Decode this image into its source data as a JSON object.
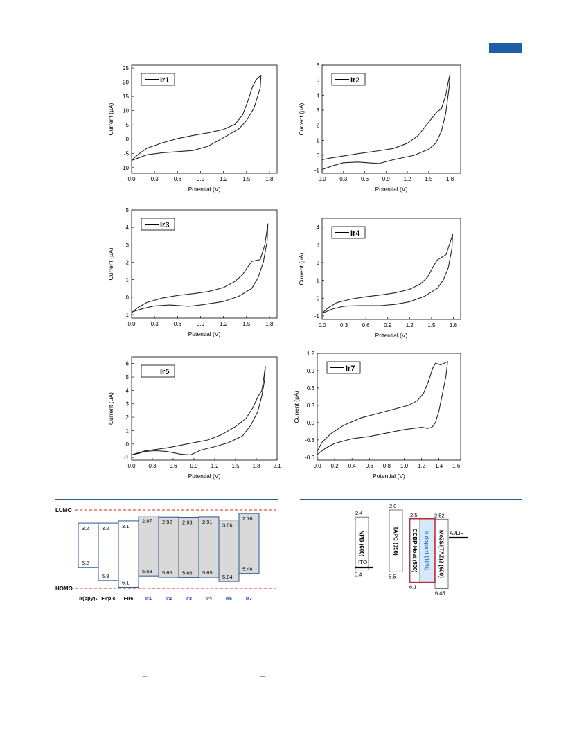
{
  "page": {
    "accent_color": "#1f5fa8",
    "rule_color": "#2b5b91",
    "bottom_marks": [
      "–",
      "–"
    ]
  },
  "chart_data": [
    {
      "id": "ir1",
      "type": "line",
      "legend": "Ir1",
      "xlabel": "Potential (V)",
      "ylabel": "Current (μA)",
      "xlim": [
        0.0,
        1.9
      ],
      "ylim": [
        -12,
        26
      ],
      "xticks": [
        0.0,
        0.3,
        0.6,
        0.9,
        1.2,
        1.5,
        1.8
      ],
      "yticks": [
        -10,
        -5,
        0,
        5,
        10,
        15,
        20,
        25
      ],
      "points": [
        [
          0.0,
          -7.5
        ],
        [
          0.08,
          -5.5
        ],
        [
          0.2,
          -3.2
        ],
        [
          0.4,
          -1.3
        ],
        [
          0.6,
          0.2
        ],
        [
          0.8,
          1.3
        ],
        [
          1.0,
          2.2
        ],
        [
          1.2,
          3.4
        ],
        [
          1.35,
          5.2
        ],
        [
          1.45,
          8.5
        ],
        [
          1.52,
          13.5
        ],
        [
          1.58,
          18.5
        ],
        [
          1.63,
          21.0
        ],
        [
          1.69,
          22.5
        ],
        [
          1.68,
          18.0
        ],
        [
          1.6,
          11.0
        ],
        [
          1.5,
          6.5
        ],
        [
          1.4,
          3.6
        ],
        [
          1.2,
          0.5
        ],
        [
          1.0,
          -2.5
        ],
        [
          0.8,
          -4.0
        ],
        [
          0.6,
          -4.4
        ],
        [
          0.4,
          -4.8
        ],
        [
          0.2,
          -5.5
        ],
        [
          0.08,
          -6.7
        ],
        [
          0.0,
          -7.5
        ]
      ]
    },
    {
      "id": "ir2",
      "type": "line",
      "legend": "Ir2",
      "xlabel": "Potential (V)",
      "ylabel": "Current (μA)",
      "xlim": [
        0.0,
        1.95
      ],
      "ylim": [
        -1.2,
        6.0
      ],
      "xticks": [
        0.0,
        0.3,
        0.6,
        0.9,
        1.2,
        1.5,
        1.8
      ],
      "yticks": [
        -1,
        0,
        1,
        2,
        3,
        4,
        5,
        6
      ],
      "points": [
        [
          0.0,
          -0.3
        ],
        [
          0.1,
          -0.2
        ],
        [
          0.3,
          -0.05
        ],
        [
          0.5,
          0.1
        ],
        [
          0.8,
          0.3
        ],
        [
          1.0,
          0.45
        ],
        [
          1.2,
          0.8
        ],
        [
          1.35,
          1.3
        ],
        [
          1.45,
          1.9
        ],
        [
          1.55,
          2.5
        ],
        [
          1.62,
          2.9
        ],
        [
          1.68,
          3.1
        ],
        [
          1.74,
          4.0
        ],
        [
          1.78,
          5.0
        ],
        [
          1.8,
          5.4
        ],
        [
          1.79,
          4.6
        ],
        [
          1.74,
          2.8
        ],
        [
          1.68,
          1.6
        ],
        [
          1.6,
          0.8
        ],
        [
          1.5,
          0.4
        ],
        [
          1.3,
          0.0
        ],
        [
          1.0,
          -0.3
        ],
        [
          0.8,
          -0.55
        ],
        [
          0.5,
          -0.45
        ],
        [
          0.3,
          -0.5
        ],
        [
          0.15,
          -0.7
        ],
        [
          0.0,
          -0.95
        ]
      ]
    },
    {
      "id": "ir3",
      "type": "line",
      "legend": "Ir3",
      "xlabel": "Potential (V)",
      "ylabel": "Current (μA)",
      "xlim": [
        0.0,
        1.9
      ],
      "ylim": [
        -1.2,
        5.0
      ],
      "xticks": [
        0.0,
        0.3,
        0.6,
        0.9,
        1.2,
        1.5,
        1.8
      ],
      "yticks": [
        -1,
        0,
        1,
        2,
        3,
        4,
        5
      ],
      "points": [
        [
          0.0,
          -0.9
        ],
        [
          0.08,
          -0.6
        ],
        [
          0.2,
          -0.3
        ],
        [
          0.4,
          -0.05
        ],
        [
          0.6,
          0.1
        ],
        [
          0.8,
          0.2
        ],
        [
          1.0,
          0.32
        ],
        [
          1.2,
          0.55
        ],
        [
          1.35,
          0.9
        ],
        [
          1.45,
          1.3
        ],
        [
          1.52,
          1.75
        ],
        [
          1.57,
          2.05
        ],
        [
          1.62,
          2.1
        ],
        [
          1.68,
          2.15
        ],
        [
          1.74,
          3.0
        ],
        [
          1.78,
          4.2
        ],
        [
          1.77,
          3.2
        ],
        [
          1.72,
          2.0
        ],
        [
          1.65,
          1.1
        ],
        [
          1.57,
          0.5
        ],
        [
          1.4,
          0.05
        ],
        [
          1.2,
          -0.25
        ],
        [
          0.9,
          -0.45
        ],
        [
          0.75,
          -0.52
        ],
        [
          0.5,
          -0.45
        ],
        [
          0.3,
          -0.5
        ],
        [
          0.15,
          -0.65
        ],
        [
          0.0,
          -0.85
        ]
      ]
    },
    {
      "id": "ir4",
      "type": "line",
      "legend": "Ir4",
      "xlabel": "Potential (V)",
      "ylabel": "Current (μA)",
      "xlim": [
        0.0,
        1.9
      ],
      "ylim": [
        -1.2,
        4.5
      ],
      "xticks": [
        0.0,
        0.3,
        0.6,
        0.9,
        1.2,
        1.5,
        1.8
      ],
      "yticks": [
        -1,
        0,
        1,
        2,
        3,
        4
      ],
      "points": [
        [
          0.0,
          -0.85
        ],
        [
          0.08,
          -0.55
        ],
        [
          0.2,
          -0.25
        ],
        [
          0.4,
          -0.05
        ],
        [
          0.6,
          0.08
        ],
        [
          0.8,
          0.18
        ],
        [
          1.0,
          0.3
        ],
        [
          1.2,
          0.5
        ],
        [
          1.35,
          0.8
        ],
        [
          1.45,
          1.2
        ],
        [
          1.52,
          1.75
        ],
        [
          1.58,
          2.15
        ],
        [
          1.64,
          2.3
        ],
        [
          1.7,
          2.45
        ],
        [
          1.76,
          3.2
        ],
        [
          1.79,
          3.6
        ],
        [
          1.78,
          2.8
        ],
        [
          1.73,
          1.7
        ],
        [
          1.66,
          1.0
        ],
        [
          1.58,
          0.55
        ],
        [
          1.4,
          0.1
        ],
        [
          1.2,
          -0.2
        ],
        [
          1.0,
          -0.35
        ],
        [
          0.8,
          -0.42
        ],
        [
          0.5,
          -0.42
        ],
        [
          0.3,
          -0.45
        ],
        [
          0.15,
          -0.6
        ],
        [
          0.0,
          -0.85
        ]
      ]
    },
    {
      "id": "ir5",
      "type": "line",
      "legend": "Ir5",
      "xlabel": "Potential (V)",
      "ylabel": "Current (μA)",
      "xlim": [
        0.0,
        2.1
      ],
      "ylim": [
        -1.2,
        6.5
      ],
      "xticks": [
        0.0,
        0.3,
        0.6,
        0.9,
        1.2,
        1.5,
        1.8,
        2.1
      ],
      "yticks": [
        -1,
        0,
        1,
        2,
        3,
        4,
        5,
        6
      ],
      "points": [
        [
          0.0,
          -0.8
        ],
        [
          0.1,
          -0.65
        ],
        [
          0.2,
          -0.5
        ],
        [
          0.35,
          -0.4
        ],
        [
          0.5,
          -0.3
        ],
        [
          0.7,
          -0.1
        ],
        [
          0.9,
          0.1
        ],
        [
          1.1,
          0.3
        ],
        [
          1.3,
          0.7
        ],
        [
          1.5,
          1.3
        ],
        [
          1.65,
          1.9
        ],
        [
          1.75,
          2.7
        ],
        [
          1.82,
          3.5
        ],
        [
          1.88,
          4.0
        ],
        [
          1.91,
          5.0
        ],
        [
          1.93,
          5.8
        ],
        [
          1.92,
          4.8
        ],
        [
          1.88,
          3.6
        ],
        [
          1.82,
          2.4
        ],
        [
          1.72,
          1.4
        ],
        [
          1.6,
          0.6
        ],
        [
          1.4,
          0.1
        ],
        [
          1.2,
          -0.2
        ],
        [
          1.0,
          -0.45
        ],
        [
          0.85,
          -0.82
        ],
        [
          0.7,
          -0.75
        ],
        [
          0.5,
          -0.55
        ],
        [
          0.35,
          -0.5
        ],
        [
          0.2,
          -0.55
        ],
        [
          0.1,
          -0.7
        ],
        [
          0.0,
          -0.8
        ]
      ]
    },
    {
      "id": "ir7",
      "type": "line",
      "legend": "Ir7",
      "xlabel": "Potential (V)",
      "ylabel": "Current (μA)",
      "xlim": [
        0.0,
        1.65
      ],
      "ylim": [
        -0.65,
        1.2
      ],
      "xticks": [
        0.0,
        0.2,
        0.4,
        0.6,
        0.8,
        1.0,
        1.2,
        1.4,
        1.6
      ],
      "yticks": [
        -0.6,
        -0.3,
        0.0,
        0.3,
        0.6,
        0.9,
        1.2
      ],
      "points": [
        [
          0.0,
          -0.5
        ],
        [
          0.05,
          -0.35
        ],
        [
          0.15,
          -0.2
        ],
        [
          0.3,
          -0.05
        ],
        [
          0.5,
          0.08
        ],
        [
          0.7,
          0.16
        ],
        [
          0.9,
          0.24
        ],
        [
          1.05,
          0.3
        ],
        [
          1.15,
          0.38
        ],
        [
          1.22,
          0.5
        ],
        [
          1.28,
          0.72
        ],
        [
          1.33,
          0.95
        ],
        [
          1.36,
          1.03
        ],
        [
          1.42,
          1.0
        ],
        [
          1.46,
          1.03
        ],
        [
          1.5,
          1.06
        ],
        [
          1.48,
          0.8
        ],
        [
          1.44,
          0.5
        ],
        [
          1.4,
          0.2
        ],
        [
          1.36,
          0.0
        ],
        [
          1.32,
          -0.08
        ],
        [
          1.27,
          -0.1
        ],
        [
          1.2,
          -0.08
        ],
        [
          1.0,
          -0.12
        ],
        [
          0.8,
          -0.18
        ],
        [
          0.6,
          -0.24
        ],
        [
          0.4,
          -0.28
        ],
        [
          0.2,
          -0.36
        ],
        [
          0.1,
          -0.44
        ],
        [
          0.0,
          -0.55
        ]
      ]
    },
    {
      "id": "energy-levels",
      "type": "bar",
      "lumo_label": "LUMO",
      "homo_label": "HOMO",
      "categories": [
        "Ir(ppy)₃",
        "FIrpic",
        "FIr6",
        "Ir1",
        "Ir2",
        "Ir3",
        "Ir4",
        "Ir5",
        "Ir7"
      ],
      "category_colors": [
        "#000000",
        "#000000",
        "#000000",
        "#1a3fd8",
        "#1a3fd8",
        "#1a3fd8",
        "#1a3fd8",
        "#1a3fd8",
        "#1a3fd8"
      ],
      "ylim": [
        2.6,
        6.15
      ],
      "lumo": [
        3.2,
        3.2,
        3.1,
        2.87,
        2.92,
        2.93,
        2.91,
        3.06,
        2.76
      ],
      "homo": [
        5.2,
        5.8,
        6.1,
        5.59,
        5.65,
        5.66,
        5.65,
        5.84,
        5.48
      ],
      "lumo_labels": [
        "3.2",
        "3.2",
        "3.1",
        "2.87",
        "2.92",
        "2.93",
        "2.91",
        "3.06",
        "2.76"
      ],
      "homo_labels": [
        "5.2",
        "5.8",
        "6.1",
        "5.59",
        "5.65",
        "5.66",
        "5.65",
        "5.84",
        "5.48"
      ],
      "filled": [
        false,
        false,
        false,
        true,
        true,
        true,
        true,
        true,
        true
      ]
    },
    {
      "id": "device-structure",
      "type": "bar",
      "layers": [
        "NPB (600)",
        "TAPC (350)",
        "CDBP Host (500)",
        "Ir dopant (10%)",
        "Me2SI(TAZ)2 (600)"
      ],
      "layer_colors": [
        "#000000",
        "#000000",
        "#000000",
        "#2a7ad8",
        "#000000"
      ],
      "lumo": [
        2.4,
        2.0,
        2.5,
        2.5,
        2.52
      ],
      "homo": [
        5.4,
        5.5,
        6.1,
        6.1,
        6.45
      ],
      "lumo_labels": [
        "2.4",
        "2.0",
        "2.5",
        "",
        "2.52"
      ],
      "homo_labels": [
        "5.4",
        "5.5",
        "6.1",
        "",
        "6.45"
      ],
      "electrodes": [
        "ITO",
        "Al/LiF"
      ]
    }
  ]
}
